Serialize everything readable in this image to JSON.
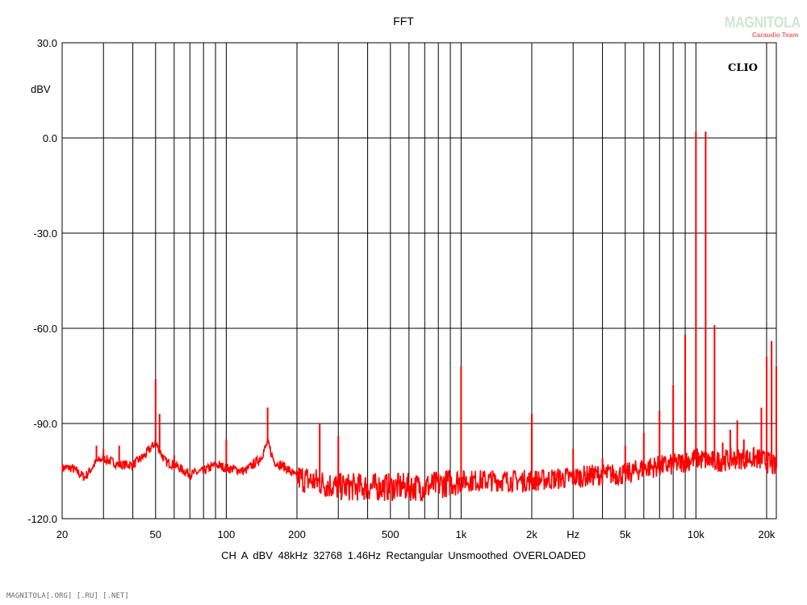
{
  "chart_data": {
    "type": "line",
    "title": "FFT",
    "ylabel": "dBV",
    "xlabel": "Hz",
    "x_scale": "log",
    "xlim": [
      20,
      22000
    ],
    "ylim": [
      -120,
      30
    ],
    "grid": true,
    "y_ticks": [
      "30.0",
      "0.0",
      "-30.0",
      "-60.0",
      "-90.0",
      "-120.0"
    ],
    "x_ticks": [
      {
        "v": 20,
        "label": "20"
      },
      {
        "v": 50,
        "label": "50"
      },
      {
        "v": 100,
        "label": "100"
      },
      {
        "v": 200,
        "label": "200"
      },
      {
        "v": 500,
        "label": "500"
      },
      {
        "v": 1000,
        "label": "1k"
      },
      {
        "v": 2000,
        "label": "2k"
      },
      {
        "v": 3000,
        "label": "Hz"
      },
      {
        "v": 5000,
        "label": "5k"
      },
      {
        "v": 10000,
        "label": "10k"
      },
      {
        "v": 20000,
        "label": "20k"
      }
    ],
    "series": [
      {
        "color": "#ff0000",
        "noise_floor": [
          [
            20,
            -104
          ],
          [
            22,
            -104
          ],
          [
            25,
            -107
          ],
          [
            28,
            -102
          ],
          [
            30,
            -101
          ],
          [
            35,
            -103
          ],
          [
            40,
            -103
          ],
          [
            45,
            -100
          ],
          [
            50,
            -96
          ],
          [
            55,
            -102
          ],
          [
            60,
            -103
          ],
          [
            70,
            -106
          ],
          [
            80,
            -105
          ],
          [
            90,
            -103
          ],
          [
            100,
            -104
          ],
          [
            120,
            -105
          ],
          [
            140,
            -101
          ],
          [
            150,
            -96
          ],
          [
            160,
            -102
          ],
          [
            180,
            -104
          ],
          [
            200,
            -107
          ],
          [
            300,
            -110
          ],
          [
            400,
            -110
          ],
          [
            500,
            -110
          ],
          [
            700,
            -110
          ],
          [
            1000,
            -108
          ],
          [
            1500,
            -108
          ],
          [
            2000,
            -108
          ],
          [
            3000,
            -107
          ],
          [
            4000,
            -106
          ],
          [
            5000,
            -106
          ],
          [
            6000,
            -104
          ],
          [
            8000,
            -103
          ],
          [
            10000,
            -101
          ],
          [
            12000,
            -102
          ],
          [
            15000,
            -101
          ],
          [
            18000,
            -101
          ],
          [
            20000,
            -102
          ],
          [
            22000,
            -104
          ]
        ],
        "peaks": [
          [
            28,
            -97
          ],
          [
            30,
            -98
          ],
          [
            35,
            -97
          ],
          [
            50,
            -76
          ],
          [
            52,
            -87
          ],
          [
            60,
            -100
          ],
          [
            100,
            -95
          ],
          [
            150,
            -85
          ],
          [
            250,
            -90
          ],
          [
            300,
            -94
          ],
          [
            1000,
            -72
          ],
          [
            2000,
            -87
          ],
          [
            3000,
            -98
          ],
          [
            4000,
            -101
          ],
          [
            5000,
            -97
          ],
          [
            6000,
            -93
          ],
          [
            7000,
            -86
          ],
          [
            8000,
            -78
          ],
          [
            9000,
            -62
          ],
          [
            10000,
            2
          ],
          [
            11000,
            2
          ],
          [
            12000,
            -59
          ],
          [
            13000,
            -96
          ],
          [
            14000,
            -92
          ],
          [
            15000,
            -89
          ],
          [
            16000,
            -95
          ],
          [
            19000,
            -85
          ],
          [
            20000,
            -69
          ],
          [
            21000,
            -64
          ],
          [
            22000,
            -72
          ]
        ]
      }
    ]
  },
  "info_line": "CH A   dBV   48kHz   32768   1.46Hz   Rectangular   Unsmoothed   OVERLOADED",
  "brand": "CLIO",
  "logo": {
    "main": "MAGNITOLA",
    "sub": "Caraudio Team"
  },
  "credit": "MAGNITOLA[.ORG] [.RU] [.NET]"
}
